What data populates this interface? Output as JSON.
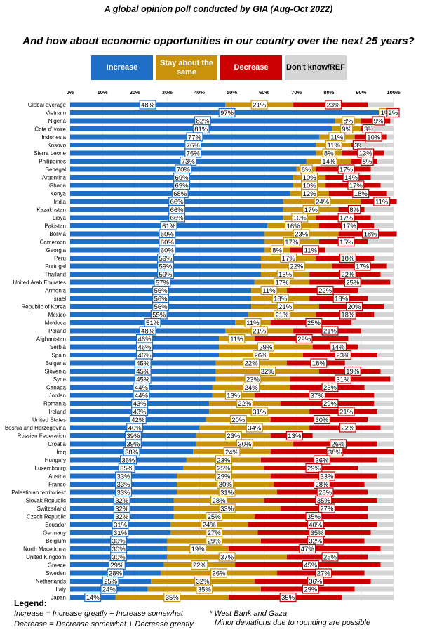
{
  "title": "A global opinion poll conducted by GIA (Aug-Oct 2022)",
  "chart_data": {
    "type": "bar",
    "stacked": true,
    "orientation": "horizontal",
    "title": "And how about economic opportunities in our country over the next 25 years?",
    "xlim": [
      0,
      100
    ],
    "xticks": [
      "0%",
      "10%",
      "20%",
      "30%",
      "40%",
      "50%",
      "60%",
      "70%",
      "80%",
      "90%",
      "100%"
    ],
    "legend": [
      {
        "name": "Increase",
        "color": "#1f6fc6"
      },
      {
        "name": "Stay about the same",
        "color": "#c8930a"
      },
      {
        "name": "Decrease",
        "color": "#cc0000"
      },
      {
        "name": "Don't know/REF",
        "color": "#d4d4d4"
      }
    ],
    "categories": [
      "Global average",
      "Vietnam",
      "Nigeria",
      "Cote d'Ivoire",
      "Indonesia",
      "Kosovo",
      "Sierra Leone",
      "Philippines",
      "Senegal",
      "Argentina",
      "Ghana",
      "Kenya",
      "India",
      "Kazakhstan",
      "Libya",
      "Pakistan",
      "Bolivia",
      "Cameroon",
      "Georgia",
      "Peru",
      "Portugal",
      "Thailand",
      "United Arab Emirates",
      "Armenia",
      "Israel",
      "Republic of Korea",
      "Mexico",
      "Moldova",
      "Poland",
      "Afghanistan",
      "Serbia",
      "Spain",
      "Bulgaria",
      "Slovenia",
      "Syria",
      "Canada",
      "Jordan",
      "Romania",
      "Ireland",
      "United States",
      "Bosnia and Herzegovina",
      "Russian Federation",
      "Croatia",
      "Iraq",
      "Hungary",
      "Luxembourg",
      "Austria",
      "France",
      "Palestinian territories*",
      "Slovak Republic",
      "Switzerland",
      "Czech Republic",
      "Ecuador",
      "Germany",
      "Belgium",
      "North Macedonia",
      "United Kingdom",
      "Greece",
      "Sweden",
      "Netherlands",
      "Italy",
      "Japan"
    ],
    "series": [
      {
        "name": "Increase",
        "values": [
          48,
          97,
          82,
          81,
          77,
          76,
          76,
          73,
          70,
          69,
          69,
          68,
          66,
          66,
          66,
          61,
          60,
          60,
          60,
          59,
          59,
          59,
          57,
          56,
          56,
          56,
          55,
          51,
          48,
          46,
          46,
          46,
          45,
          45,
          45,
          44,
          44,
          43,
          43,
          42,
          40,
          39,
          39,
          38,
          36,
          35,
          33,
          33,
          33,
          32,
          32,
          32,
          31,
          31,
          30,
          30,
          30,
          29,
          28,
          25,
          24,
          14
        ]
      },
      {
        "name": "Stay about the same",
        "values": [
          21,
          1,
          8,
          9,
          11,
          11,
          8,
          14,
          6,
          10,
          10,
          12,
          24,
          17,
          10,
          16,
          23,
          17,
          8,
          17,
          22,
          15,
          17,
          11,
          18,
          21,
          21,
          11,
          21,
          11,
          29,
          26,
          22,
          32,
          23,
          24,
          13,
          22,
          31,
          20,
          34,
          23,
          30,
          24,
          23,
          25,
          29,
          30,
          31,
          28,
          33,
          25,
          24,
          27,
          29,
          19,
          37,
          22,
          36,
          32,
          35,
          35
        ]
      },
      {
        "name": "Decrease",
        "values": [
          23,
          2,
          9,
          3,
          10,
          3,
          13,
          8,
          17,
          14,
          17,
          18,
          11,
          8,
          17,
          17,
          18,
          15,
          11,
          18,
          17,
          22,
          25,
          22,
          18,
          20,
          18,
          25,
          21,
          29,
          14,
          23,
          18,
          19,
          31,
          23,
          37,
          29,
          21,
          30,
          22,
          13,
          26,
          38,
          36,
          29,
          33,
          28,
          28,
          35,
          27,
          35,
          40,
          35,
          32,
          47,
          25,
          45,
          27,
          36,
          29,
          35
        ]
      }
    ]
  },
  "legend_notes": {
    "heading": "Legend:",
    "line1": "Increase = Increase greatly + Increase somewhat",
    "line2": "Decrease = Decrease somewhat + Decrease greatly",
    "note1": "* West Bank and Gaza",
    "note2": "Minor deviations due to rounding are possible"
  }
}
